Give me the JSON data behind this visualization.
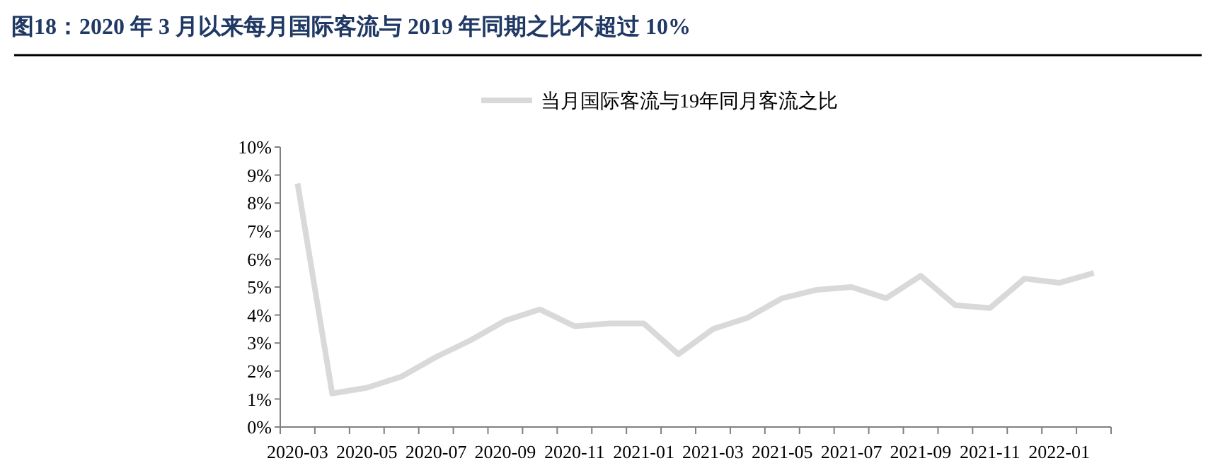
{
  "chart_data": {
    "type": "line",
    "title": "图18：2020 年 3 月以来每月国际客流与 2019 年同期之比不超过 10%",
    "categories": [
      "2020-03",
      null,
      "2020-05",
      null,
      "2020-07",
      null,
      "2020-09",
      null,
      "2020-11",
      null,
      "2021-01",
      null,
      "2021-03",
      null,
      "2021-05",
      null,
      "2021-07",
      null,
      "2021-09",
      null,
      "2021-11",
      null,
      "2022-01",
      null
    ],
    "series": [
      {
        "name": "当月国际客流与19年同月客流之比",
        "color": "#d9d9d9",
        "values": [
          8.7,
          1.2,
          1.4,
          1.8,
          2.5,
          3.1,
          3.8,
          4.2,
          3.6,
          3.7,
          3.7,
          2.6,
          3.5,
          3.9,
          4.6,
          4.9,
          5.0,
          4.6,
          5.4,
          4.35,
          4.25,
          5.3,
          5.15,
          5.5
        ]
      }
    ],
    "ylim": [
      0,
      10
    ],
    "yticks": [
      {
        "value": 0,
        "label": "0%"
      },
      {
        "value": 1,
        "label": "1%"
      },
      {
        "value": 2,
        "label": "2%"
      },
      {
        "value": 3,
        "label": "3%"
      },
      {
        "value": 4,
        "label": "4%"
      },
      {
        "value": 5,
        "label": "5%"
      },
      {
        "value": 6,
        "label": "6%"
      },
      {
        "value": 7,
        "label": "7%"
      },
      {
        "value": 8,
        "label": "8%"
      },
      {
        "value": 9,
        "label": "9%"
      },
      {
        "value": 10,
        "label": "10%"
      }
    ],
    "legend": "top",
    "grid": false,
    "marker": "none",
    "line_style": "solid"
  }
}
